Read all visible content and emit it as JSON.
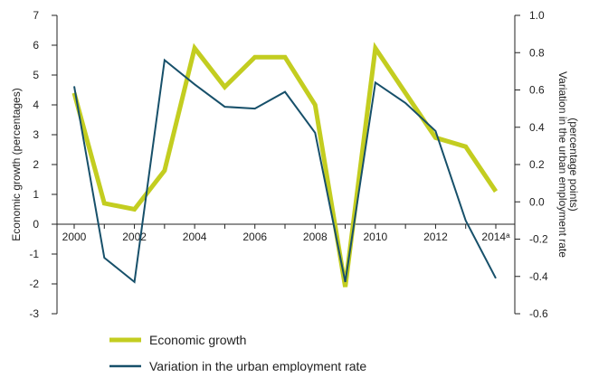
{
  "chart_data": {
    "type": "line",
    "title": "",
    "x": [
      2000,
      2001,
      2002,
      2003,
      2004,
      2005,
      2006,
      2007,
      2008,
      2009,
      2010,
      2011,
      2012,
      2013,
      2014
    ],
    "x_tick_labels": [
      "2000",
      "2002",
      "2004",
      "2006",
      "2008",
      "2010",
      "2012",
      "2014ᵃ"
    ],
    "left_axis": {
      "label": "Economic growth (percentages)",
      "ylim": [
        -3,
        7
      ],
      "ticks": [
        "7",
        "6",
        "5",
        "4",
        "3",
        "2",
        "1",
        "0",
        "-1",
        "-2",
        "-3"
      ]
    },
    "right_axis": {
      "label_line1": "Variation in the urban employment rate",
      "label_line2": "(percentage points)",
      "ylim": [
        -0.6,
        1.0
      ],
      "ticks": [
        "1.0",
        "0.8",
        "0.6",
        "0.4",
        "0.2",
        "0.0",
        "-0.2",
        "-0.4",
        "-0.6"
      ]
    },
    "series": [
      {
        "name": "Economic growth",
        "axis": "left",
        "color": "#c3cd20",
        "values": [
          4.4,
          0.7,
          0.5,
          1.8,
          5.9,
          4.6,
          5.6,
          5.6,
          4.0,
          -2.1,
          5.9,
          4.4,
          2.9,
          2.6,
          1.1
        ]
      },
      {
        "name": "Variation in the urban employment rate",
        "axis": "right",
        "color": "#17506a",
        "values": [
          0.62,
          -0.3,
          -0.43,
          0.76,
          0.63,
          0.51,
          0.5,
          0.59,
          0.37,
          -0.43,
          0.64,
          0.53,
          0.38,
          -0.1,
          -0.41
        ]
      }
    ],
    "grid": false,
    "legend_position": "bottom"
  }
}
